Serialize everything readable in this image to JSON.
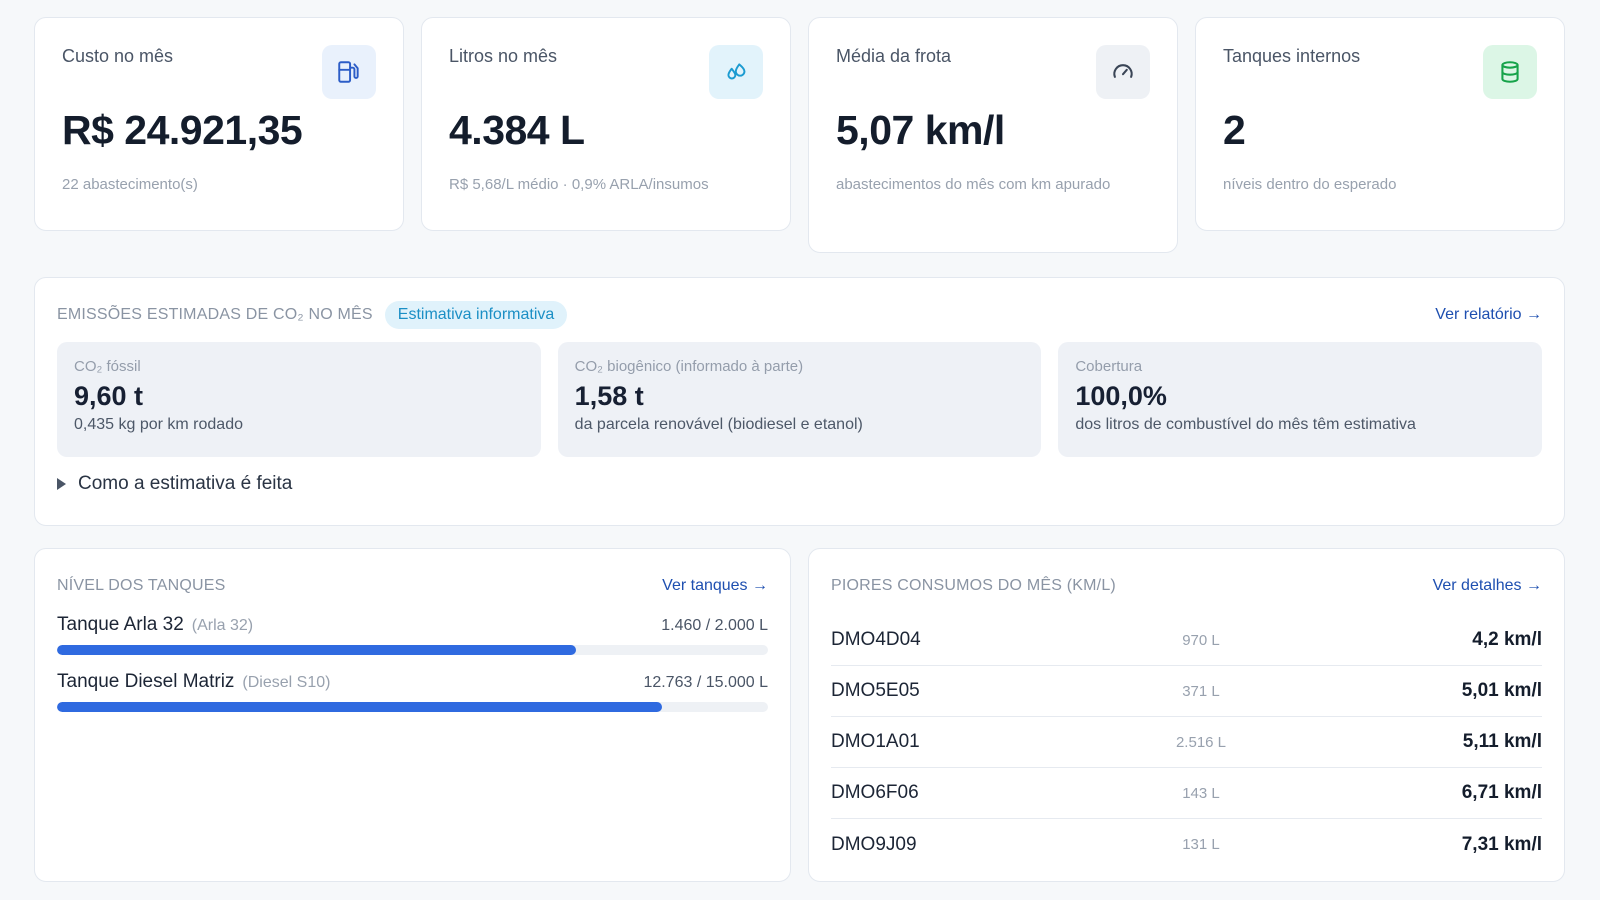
{
  "kpis": [
    {
      "title": "Custo no mês",
      "value": "R$ 24.921,35",
      "sub": "22 abastecimento(s)",
      "icon": "fuel-pump-icon"
    },
    {
      "title": "Litros no mês",
      "value": "4.384 L",
      "sub": "R$ 5,68/L médio · 0,9% ARLA/insumos",
      "icon": "droplets-icon"
    },
    {
      "title": "Média da frota",
      "value": "5,07 km/l",
      "sub": "abastecimentos do mês com km apurado",
      "icon": "gauge-icon"
    },
    {
      "title": "Tanques internos",
      "value": "2",
      "sub": "níveis dentro do esperado",
      "icon": "cylinder-icon"
    }
  ],
  "emissions": {
    "title": "EMISSÕES ESTIMADAS DE CO₂ NO MÊS",
    "badge": "Estimativa informativa",
    "link": "Ver relatório →",
    "metrics": [
      {
        "label": "CO₂ fóssil",
        "value": "9,60 t",
        "desc": "0,435 kg por km rodado"
      },
      {
        "label": "CO₂ biogênico (informado à parte)",
        "value": "1,58 t",
        "desc": "da parcela renovável (biodiesel e etanol)"
      },
      {
        "label": "Cobertura",
        "value": "100,0%",
        "desc": "dos litros de combustível do mês têm estimativa"
      }
    ],
    "details_label": "Como a estimativa é feita"
  },
  "tanks": {
    "title": "NÍVEL DOS TANQUES",
    "link": "Ver tanques →",
    "items": [
      {
        "name": "Tanque Arla 32",
        "type": "(Arla 32)",
        "level": "1.460 / 2.000 L",
        "fill": 0.73
      },
      {
        "name": "Tanque Diesel Matriz",
        "type": "(Diesel S10)",
        "level": "12.763 / 15.000 L",
        "fill": 0.851
      }
    ]
  },
  "worst": {
    "title": "PIORES CONSUMOS DO MÊS (KM/L)",
    "link": "Ver detalhes →",
    "rows": [
      {
        "plate": "DMO4D04",
        "liters": "970 L",
        "eff": "4,2 km/l"
      },
      {
        "plate": "DMO5E05",
        "liters": "371 L",
        "eff": "5,01 km/l"
      },
      {
        "plate": "DMO1A01",
        "liters": "2.516 L",
        "eff": "5,11 km/l"
      },
      {
        "plate": "DMO6F06",
        "liters": "143 L",
        "eff": "6,71 km/l"
      },
      {
        "plate": "DMO9J09",
        "liters": "131 L",
        "eff": "7,31 km/l"
      }
    ]
  },
  "colors": {
    "accent": "#2f6ae0",
    "link": "#1e4fb0",
    "badge_text": "#1b8fc5",
    "ok_green": "#16a34a"
  }
}
